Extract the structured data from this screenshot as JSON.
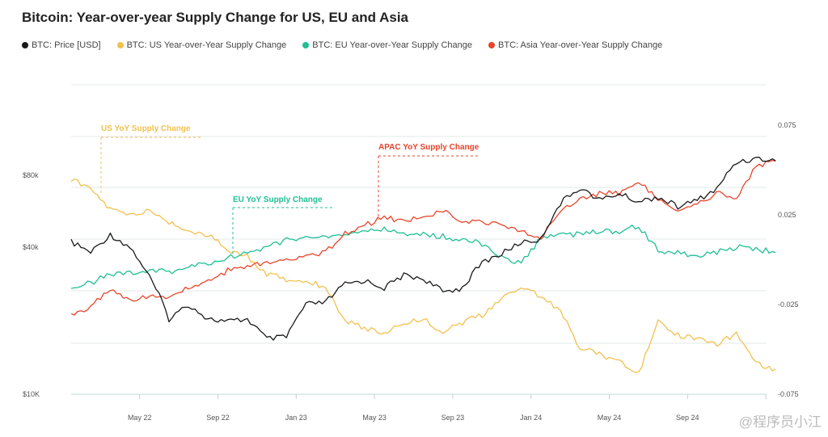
{
  "chart_data": {
    "type": "line",
    "title": "Bitcoin: Year-over-year Supply Change for US, EU and Asia",
    "x": [
      "2022-01",
      "2022-02",
      "2022-03",
      "2022-04",
      "2022-05",
      "2022-06",
      "2022-07",
      "2022-08",
      "2022-09",
      "2022-10",
      "2022-11",
      "2022-12",
      "2023-01",
      "2023-02",
      "2023-03",
      "2023-04",
      "2023-05",
      "2023-06",
      "2023-07",
      "2023-08",
      "2023-09",
      "2023-10",
      "2023-11",
      "2023-12",
      "2024-01",
      "2024-02",
      "2024-03",
      "2024-04",
      "2024-05",
      "2024-06",
      "2024-07",
      "2024-08",
      "2024-09",
      "2024-10",
      "2024-11",
      "2024-12",
      "2025-01"
    ],
    "x_ticks": [
      "May 22",
      "Sep 22",
      "Jan 23",
      "May 23",
      "Sep 23",
      "Jan 24",
      "May 24",
      "Sep 24"
    ],
    "left_axis": {
      "scale": "log",
      "ticks": [
        {
          "v": 80000,
          "label": "$80k"
        },
        {
          "v": 40000,
          "label": "$40k"
        },
        {
          "v": 10000,
          "label": "$10K"
        }
      ],
      "range": [
        10000,
        160000
      ]
    },
    "right_axis": {
      "scale": "linear",
      "ticks": [
        {
          "v": 0.075,
          "label": "0.075"
        },
        {
          "v": 0.025,
          "label": "0.025"
        },
        {
          "v": -0.025,
          "label": "-0.025"
        },
        {
          "v": -0.075,
          "label": "-0.075"
        }
      ],
      "range": [
        -0.075,
        0.075
      ]
    },
    "grid": true,
    "legend_position": "top-left",
    "series": [
      {
        "name": "BTC: Price [USD]",
        "axis": "left",
        "color": "#1a1a1a",
        "values": [
          42000,
          38000,
          45000,
          40000,
          30000,
          20000,
          23000,
          20000,
          19500,
          20000,
          16500,
          16800,
          23000,
          23500,
          28000,
          29000,
          27000,
          30500,
          29500,
          26000,
          27000,
          34500,
          37500,
          42000,
          43000,
          61000,
          71000,
          63000,
          67000,
          62000,
          65000,
          59000,
          63000,
          70000,
          91000,
          94000,
          92000
        ]
      },
      {
        "name": "BTC: US Year-over-Year Supply Change",
        "axis": "right",
        "color": "#f2c14e",
        "values": [
          0.045,
          0.039,
          0.028,
          0.025,
          0.027,
          0.021,
          0.016,
          0.014,
          0.005,
          0.002,
          -0.008,
          -0.011,
          -0.012,
          -0.015,
          -0.034,
          -0.038,
          -0.041,
          -0.035,
          -0.033,
          -0.04,
          -0.035,
          -0.031,
          -0.022,
          -0.015,
          -0.02,
          -0.029,
          -0.049,
          -0.053,
          -0.056,
          -0.063,
          -0.035,
          -0.042,
          -0.044,
          -0.047,
          -0.041,
          -0.058,
          -0.061
        ]
      },
      {
        "name": "BTC: EU Year-over-Year Supply Change",
        "axis": "right",
        "color": "#1fbf95",
        "values": [
          -0.015,
          -0.013,
          -0.008,
          -0.007,
          -0.006,
          -0.007,
          -0.004,
          -0.002,
          0.001,
          0.004,
          0.007,
          0.011,
          0.013,
          0.012,
          0.014,
          0.016,
          0.017,
          0.014,
          0.014,
          0.013,
          0.011,
          0.009,
          0.001,
          -0.002,
          0.012,
          0.014,
          0.014,
          0.016,
          0.016,
          0.019,
          0.005,
          0.004,
          0.002,
          0.004,
          0.007,
          0.006,
          0.004
        ]
      },
      {
        "name": "BTC: Asia Year-over-Year Supply Change",
        "axis": "right",
        "color": "#e8452c",
        "values": [
          -0.031,
          -0.026,
          -0.017,
          -0.022,
          -0.02,
          -0.022,
          -0.015,
          -0.012,
          -0.006,
          -0.003,
          -0.002,
          0.001,
          0.002,
          0.004,
          0.015,
          0.019,
          0.024,
          0.021,
          0.024,
          0.027,
          0.022,
          0.021,
          0.019,
          0.016,
          0.012,
          0.027,
          0.034,
          0.037,
          0.037,
          0.043,
          0.034,
          0.028,
          0.032,
          0.037,
          0.034,
          0.052,
          0.055
        ]
      }
    ],
    "annotations": [
      {
        "text": "US YoY Supply Change",
        "color": "#f2c14e",
        "series": 1
      },
      {
        "text": "EU YoY Supply Change",
        "color": "#1fbf95",
        "series": 2
      },
      {
        "text": "APAC YoY Supply Change",
        "color": "#e8452c",
        "series": 3
      }
    ]
  },
  "watermark": "@程序员小江"
}
